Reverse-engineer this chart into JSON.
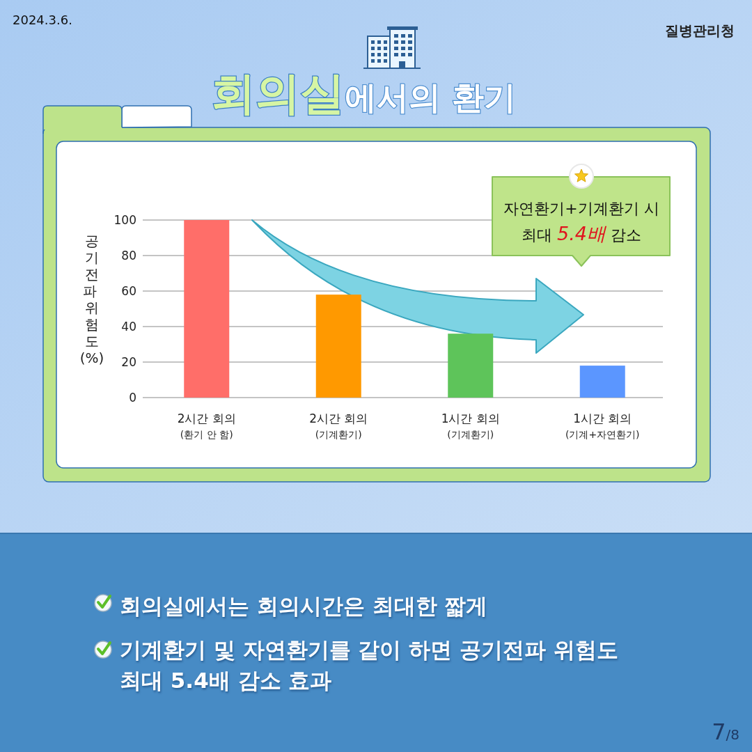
{
  "chart_data": {
    "type": "bar",
    "title": "회의실에서의 환기",
    "ylabel": "공기전파 위험도(%)",
    "categories": [
      "2시간 회의\n(환기 안 함)",
      "2시간 회의\n(기계환기)",
      "1시간 회의\n(기계환기)",
      "1시간 회의\n(기계+자연환기)"
    ],
    "values": [
      100,
      58,
      36,
      18
    ],
    "colors": [
      "#ff6e69",
      "#ff9900",
      "#5ec45a",
      "#5b96ff"
    ],
    "ylim": [
      0,
      100
    ],
    "yticks": [
      0,
      20,
      40,
      60,
      80,
      100
    ],
    "grid": "y",
    "annotations": [
      "2024.3.6.",
      "질병관리청",
      "자연환기+기계환기 시\n최대 5.4배 감소",
      "회의실에서는 회의시간은 최대한 짧게",
      "기계환기 및 자연환기를 같이 하면 공기전파 위험도 최대 5.4배 감소 효과",
      "7/8"
    ]
  }
}
